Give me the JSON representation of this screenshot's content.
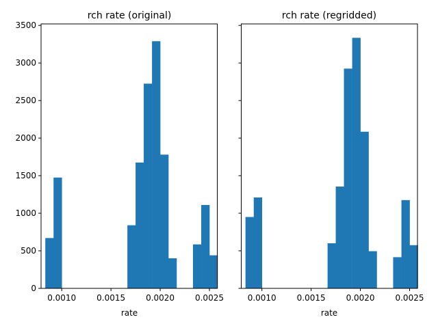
{
  "chart_data": [
    {
      "type": "bar",
      "subtype": "histogram",
      "title": "rch rate (original)",
      "xlabel": "rate",
      "ylabel": "",
      "xlim": [
        0.00079,
        0.00258
      ],
      "ylim": [
        0,
        3520
      ],
      "xticks": [
        0.001,
        0.0015,
        0.002,
        0.0025
      ],
      "xtick_labels": [
        "0.0010",
        "0.0015",
        "0.0020",
        "0.0025"
      ],
      "yticks": [
        0,
        500,
        1000,
        1500,
        2000,
        2500,
        3000,
        3500
      ],
      "ytick_labels": [
        "0",
        "500",
        "1000",
        "1500",
        "2000",
        "2500",
        "3000",
        "3500"
      ],
      "bin_width": 8.33e-05,
      "bins": [
        {
          "left": 0.000833,
          "count": 670
        },
        {
          "left": 0.000917,
          "count": 1475
        },
        {
          "left": 0.001667,
          "count": 840
        },
        {
          "left": 0.00175,
          "count": 1675
        },
        {
          "left": 0.001833,
          "count": 2725
        },
        {
          "left": 0.001917,
          "count": 3290
        },
        {
          "left": 0.002,
          "count": 1780
        },
        {
          "left": 0.002083,
          "count": 400
        },
        {
          "left": 0.002333,
          "count": 585
        },
        {
          "left": 0.002417,
          "count": 1110
        },
        {
          "left": 0.0025,
          "count": 440
        }
      ]
    },
    {
      "type": "bar",
      "subtype": "histogram",
      "title": "rch rate (regridded)",
      "xlabel": "rate",
      "ylabel": "",
      "xlim": [
        0.00079,
        0.00258
      ],
      "ylim": [
        0,
        3520
      ],
      "xticks": [
        0.001,
        0.0015,
        0.002,
        0.0025
      ],
      "xtick_labels": [
        "0.0010",
        "0.0015",
        "0.0020",
        "0.0025"
      ],
      "yticks": [
        0,
        500,
        1000,
        1500,
        2000,
        2500,
        3000,
        3500
      ],
      "ytick_labels": [
        "",
        "",
        "",
        "",
        "",
        "",
        "",
        ""
      ],
      "bin_width": 8.33e-05,
      "bins": [
        {
          "left": 0.000833,
          "count": 950
        },
        {
          "left": 0.000917,
          "count": 1210
        },
        {
          "left": 0.001667,
          "count": 600
        },
        {
          "left": 0.00175,
          "count": 1355
        },
        {
          "left": 0.001833,
          "count": 2925
        },
        {
          "left": 0.001917,
          "count": 3335
        },
        {
          "left": 0.002,
          "count": 2085
        },
        {
          "left": 0.002083,
          "count": 495
        },
        {
          "left": 0.002333,
          "count": 415
        },
        {
          "left": 0.002417,
          "count": 1175
        },
        {
          "left": 0.0025,
          "count": 575
        }
      ]
    }
  ],
  "colors": {
    "bar": "#1f77b4"
  }
}
